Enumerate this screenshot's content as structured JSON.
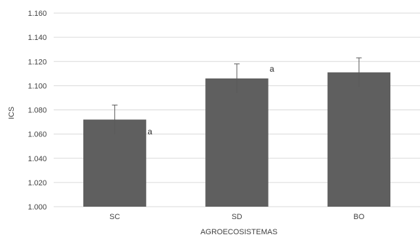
{
  "chart_data": {
    "type": "bar",
    "categories": [
      "SC",
      "SD",
      "BO"
    ],
    "values": [
      1.072,
      1.106,
      1.111
    ],
    "error": [
      0.012,
      0.012,
      0.012
    ],
    "xlabel": "AGROECOSISTEMAS",
    "ylabel": "ICS",
    "ylim": [
      1.0,
      1.16
    ],
    "yticks": [
      1.0,
      1.02,
      1.04,
      1.06,
      1.08,
      1.1,
      1.12,
      1.14,
      1.16
    ],
    "ytick_labels": [
      "1.000",
      "1.020",
      "1.040",
      "1.060",
      "1.080",
      "1.100",
      "1.120",
      "1.140",
      "1.160"
    ],
    "annotations": [
      {
        "text": "a",
        "x": "SC",
        "y": 1.062
      },
      {
        "text": "a",
        "x": "SD",
        "y": 1.114
      }
    ],
    "grid": true,
    "bar_color": "#5f5f5f",
    "grid_color": "#d9d9d9",
    "error_color": "#595959"
  }
}
